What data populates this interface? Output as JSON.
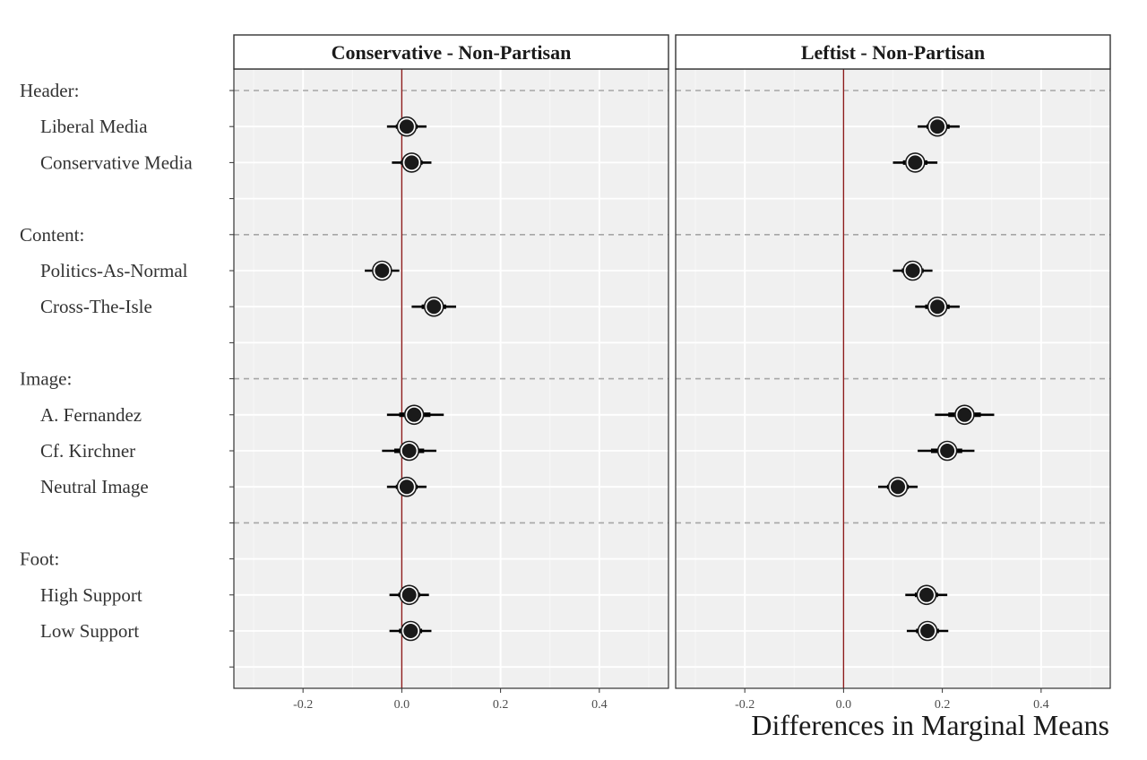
{
  "chart_data": {
    "type": "scatter",
    "xlabel": "Differences in Marginal Means",
    "xlim": [
      -0.34,
      0.54
    ],
    "x_ticks": [
      "-0.2",
      "0.0",
      "0.2",
      "0.4"
    ],
    "x_tick_values": [
      -0.2,
      0.0,
      0.2,
      0.4
    ],
    "reference_line": 0.0,
    "grid": true,
    "row_labels": [
      "Header:",
      "Liberal Media",
      "Conservative Media",
      "",
      "Content:",
      "Politics-As-Normal",
      "Cross-The-Isle",
      "",
      "Image:",
      "A. Fernandez",
      "Cf. Kirchner",
      "Neutral Image",
      "",
      "Foot:",
      "High Support",
      "Low Support",
      ""
    ],
    "dashed_rows": [
      0,
      4,
      8,
      12
    ],
    "panels": [
      {
        "title": "Conservative - Non-Partisan",
        "points": [
          {
            "label": "Liberal Media",
            "estimate": 0.01,
            "lower": -0.03,
            "upper": 0.05
          },
          {
            "label": "Conservative Media",
            "estimate": 0.02,
            "lower": -0.02,
            "upper": 0.06
          },
          {
            "label": "Politics-As-Normal",
            "estimate": -0.04,
            "lower": -0.075,
            "upper": -0.005
          },
          {
            "label": "Cross-The-Isle",
            "estimate": 0.065,
            "lower": 0.02,
            "upper": 0.11
          },
          {
            "label": "A. Fernandez",
            "estimate": 0.025,
            "lower": -0.03,
            "upper": 0.085
          },
          {
            "label": "Cf. Kirchner",
            "estimate": 0.015,
            "lower": -0.04,
            "upper": 0.07
          },
          {
            "label": "Neutral Image",
            "estimate": 0.01,
            "lower": -0.03,
            "upper": 0.05
          },
          {
            "label": "High Support",
            "estimate": 0.015,
            "lower": -0.025,
            "upper": 0.055
          },
          {
            "label": "Low Support",
            "estimate": 0.018,
            "lower": -0.025,
            "upper": 0.06
          }
        ]
      },
      {
        "title": "Leftist - Non-Partisan",
        "points": [
          {
            "label": "Liberal Media",
            "estimate": 0.19,
            "lower": 0.15,
            "upper": 0.235
          },
          {
            "label": "Conservative Media",
            "estimate": 0.145,
            "lower": 0.1,
            "upper": 0.19
          },
          {
            "label": "Politics-As-Normal",
            "estimate": 0.14,
            "lower": 0.1,
            "upper": 0.18
          },
          {
            "label": "Cross-The-Isle",
            "estimate": 0.19,
            "lower": 0.145,
            "upper": 0.235
          },
          {
            "label": "A. Fernandez",
            "estimate": 0.245,
            "lower": 0.185,
            "upper": 0.305
          },
          {
            "label": "Cf. Kirchner",
            "estimate": 0.21,
            "lower": 0.15,
            "upper": 0.265
          },
          {
            "label": "Neutral Image",
            "estimate": 0.11,
            "lower": 0.07,
            "upper": 0.15
          },
          {
            "label": "High Support",
            "estimate": 0.168,
            "lower": 0.125,
            "upper": 0.21
          },
          {
            "label": "Low Support",
            "estimate": 0.17,
            "lower": 0.128,
            "upper": 0.212
          }
        ]
      }
    ]
  },
  "colors": {
    "panel_bg": "#f0f0f0",
    "grid_major": "#ffffff",
    "grid_minor": "#f7f7f7",
    "reference_line": "#8b1a1a",
    "dashed": "#a6a6a6",
    "point_fill": "#1a1a1a",
    "point_ring": "#1a1a1a",
    "errorbar": "#000000",
    "strip_bg": "#ffffff",
    "border": "#333333"
  }
}
